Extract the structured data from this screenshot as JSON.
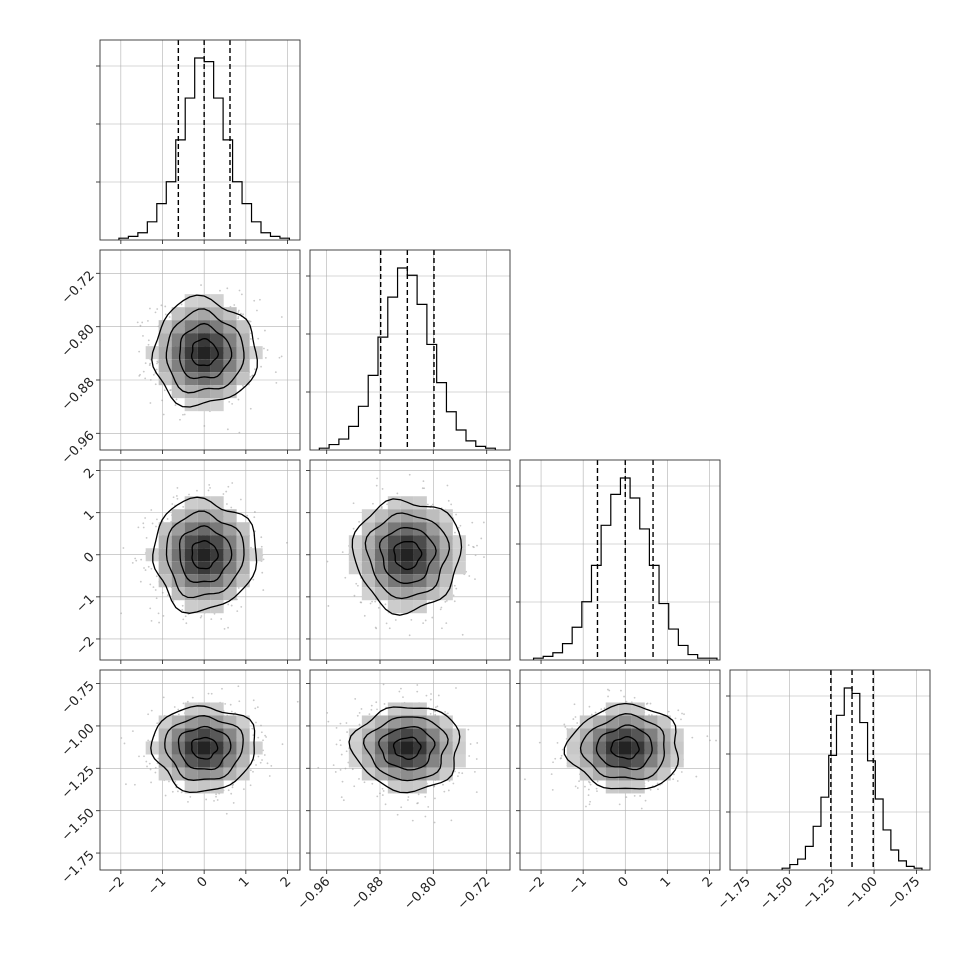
{
  "chart_data": {
    "type": "corner",
    "grid": true,
    "colors": {
      "line": "#000000",
      "grid": "#b0b0b0",
      "scatter": "#9a9a9a",
      "frame": "#333333"
    },
    "params": [
      {
        "ticks": [
          -2,
          -1,
          0,
          1,
          2
        ],
        "tick_labels": [
          "−2",
          "−1",
          "0",
          "1",
          "2"
        ],
        "range": [
          -2.5,
          2.3
        ],
        "mean": 0.0,
        "sigma": 0.62,
        "quantiles": [
          -0.62,
          0.0,
          0.62
        ]
      },
      {
        "ticks": [
          -0.96,
          -0.88,
          -0.8,
          -0.72
        ],
        "tick_labels": [
          "−0.96",
          "−0.88",
          "−0.80",
          "−0.72"
        ],
        "range": [
          -0.985,
          -0.685
        ],
        "mean": -0.839,
        "sigma": 0.04,
        "quantiles": [
          -0.879,
          -0.839,
          -0.799
        ]
      },
      {
        "ticks": [
          -2,
          -1,
          0,
          1,
          2
        ],
        "tick_labels": [
          "−2",
          "−1",
          "0",
          "1",
          "2"
        ],
        "range": [
          -2.5,
          2.25
        ],
        "mean": 0.0,
        "sigma": 0.66,
        "quantiles": [
          -0.66,
          0.0,
          0.66
        ]
      },
      {
        "ticks": [
          -1.75,
          -1.5,
          -1.25,
          -1.0,
          -0.75
        ],
        "tick_labels": [
          "−1.75",
          "−1.50",
          "−1.25",
          "−1.00",
          "−0.75"
        ],
        "range": [
          -1.85,
          -0.67
        ],
        "mean": -1.13,
        "sigma": 0.125,
        "quantiles": [
          -1.255,
          -1.13,
          -1.005
        ]
      }
    ],
    "hist_counts": [
      [
        1,
        2,
        4,
        10,
        20,
        32,
        55,
        78,
        100,
        98,
        78,
        55,
        32,
        20,
        10,
        4,
        2,
        1
      ],
      [
        1,
        3,
        6,
        13,
        24,
        41,
        62,
        84,
        100,
        96,
        80,
        58,
        37,
        21,
        11,
        5,
        2,
        1
      ],
      [
        1,
        2,
        4,
        9,
        18,
        32,
        52,
        74,
        91,
        100,
        89,
        72,
        52,
        31,
        17,
        8,
        3,
        1,
        1
      ],
      [
        1,
        3,
        6,
        13,
        24,
        40,
        63,
        85,
        100,
        97,
        81,
        60,
        39,
        22,
        11,
        5,
        2,
        1
      ]
    ]
  }
}
